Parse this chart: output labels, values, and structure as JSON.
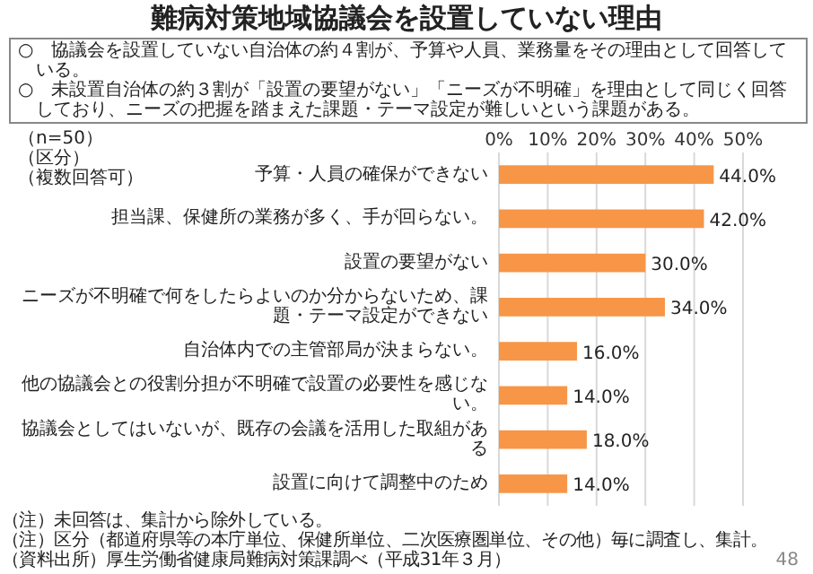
{
  "chart_data": {
    "type": "bar",
    "orientation": "horizontal",
    "title": "難病対策地域協議会を設置していない理由",
    "categories": [
      "予算・人員の確保ができない",
      "担当課、保健所の業務が多く、手が回らない。",
      "設置の要望がない",
      "ニーズが不明確で何をしたらよいのか分からないため、課題・テーマ設定ができない",
      "自治体内での主管部局が決まらない。",
      "他の協議会との役割分担が不明確で設置の必要性を感じない。",
      "協議会としてはいないが、既存の会議を活用した取組がある",
      "設置に向けて調整中のため"
    ],
    "values": [
      44.0,
      42.0,
      30.0,
      34.0,
      16.0,
      14.0,
      18.0,
      14.0
    ],
    "value_labels": [
      "44.0%",
      "42.0%",
      "30.0%",
      "34.0%",
      "16.0%",
      "14.0%",
      "18.0%",
      "14.0%"
    ],
    "color": "#f79646",
    "xlim": [
      0,
      50
    ],
    "xticks": [
      {
        "value": 0,
        "label": "0%"
      },
      {
        "value": 10,
        "label": "10%"
      },
      {
        "value": 20,
        "label": "20%"
      },
      {
        "value": 30,
        "label": "30%"
      },
      {
        "value": 40,
        "label": "40%"
      },
      {
        "value": 50,
        "label": "50%"
      }
    ],
    "grid": "x",
    "annotations": [
      "○　協議会を設置していない自治体の約４割が、予算や人員、業務量をその理由として回答している。",
      "○　未設置自治体の約３割が「設置の要望がない」「ニーズが不明確」を理由として同じく回答しており、ニーズの把握を踏まえた課題・テーマ設定が難しいという課題がある。",
      "（n=50）",
      "（区分）",
      "（複数回答可）",
      "（注）未回答は、集計から除外している。",
      "（注）区分（都道府県等の本庁単位、保健所単位、二次医療圏単位、その他）毎に調査し、集計。",
      "（資料出所）厚生労働省健康局難病対策課調べ（平成31年３月）",
      "48"
    ]
  }
}
